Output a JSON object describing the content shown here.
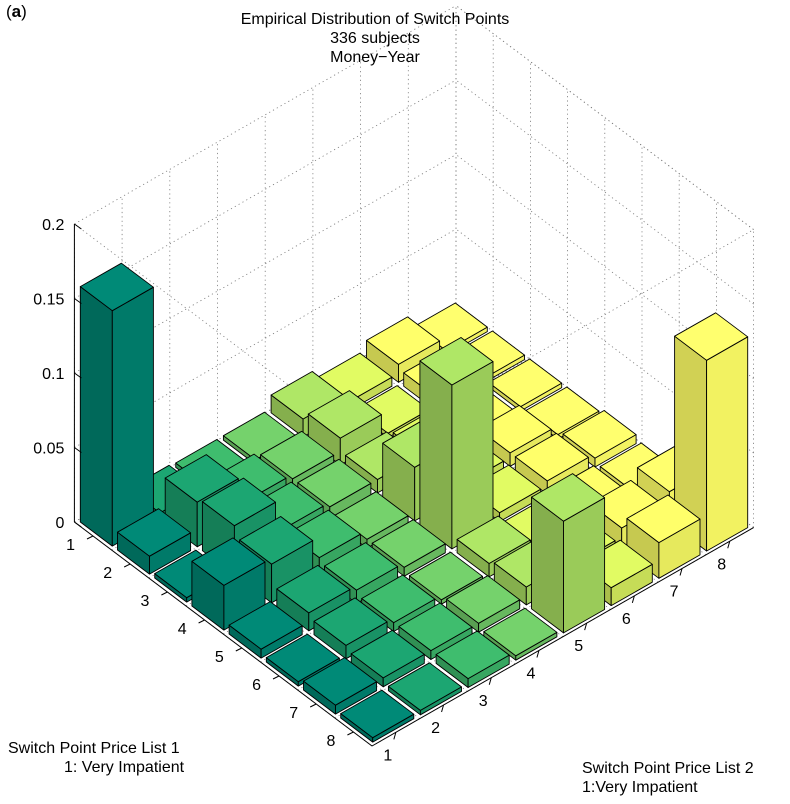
{
  "panel_label": "(a)",
  "panel_label_letter": "a",
  "chart_data": {
    "type": "bar3d",
    "title": [
      "Empirical Distribution of Switch Points",
      "336 subjects",
      "Money−Year"
    ],
    "zticks": [
      "0",
      "0.05",
      "0.1",
      "0.15",
      "0.2"
    ],
    "zlim": [
      0,
      0.2
    ],
    "list1_ticks": [
      "1",
      "2",
      "3",
      "4",
      "5",
      "6",
      "7",
      "8"
    ],
    "list2_ticks": [
      "1",
      "2",
      "3",
      "4",
      "5",
      "6",
      "7",
      "8"
    ],
    "list1_label": [
      "Switch Point Price List 1",
      "1: Very Impatient"
    ],
    "list2_label": [
      "Switch Point Price List 2",
      "1:Very Impatient"
    ],
    "grid": true,
    "colormap": [
      "#00806e",
      "#1a9a6a",
      "#3aaf66",
      "#6cc264",
      "#a2d65e",
      "#d0e85c",
      "#f2f562",
      "#ffff66"
    ],
    "values": [
      [
        0.158,
        0.004,
        0.003,
        0.003,
        0.012,
        0.006,
        0.012,
        0.003
      ],
      [
        0.012,
        0.03,
        0.012,
        0.009,
        0.018,
        0.003,
        0.009,
        0.003
      ],
      [
        0.003,
        0.033,
        0.012,
        0.009,
        0.009,
        0.006,
        0.003,
        0.003
      ],
      [
        0.03,
        0.026,
        0.012,
        0.006,
        0.036,
        0.006,
        0.009,
        0.003
      ],
      [
        0.006,
        0.012,
        0.009,
        0.006,
        0.11,
        0.006,
        0.009,
        0.006
      ],
      [
        0.003,
        0.009,
        0.006,
        0.003,
        0.009,
        0.003,
        0.006,
        0.003
      ],
      [
        0.006,
        0.006,
        0.006,
        0.006,
        0.012,
        0.009,
        0.015,
        0.021
      ],
      [
        0.003,
        0.003,
        0.006,
        0.003,
        0.075,
        0.012,
        0.024,
        0.128
      ]
    ]
  }
}
